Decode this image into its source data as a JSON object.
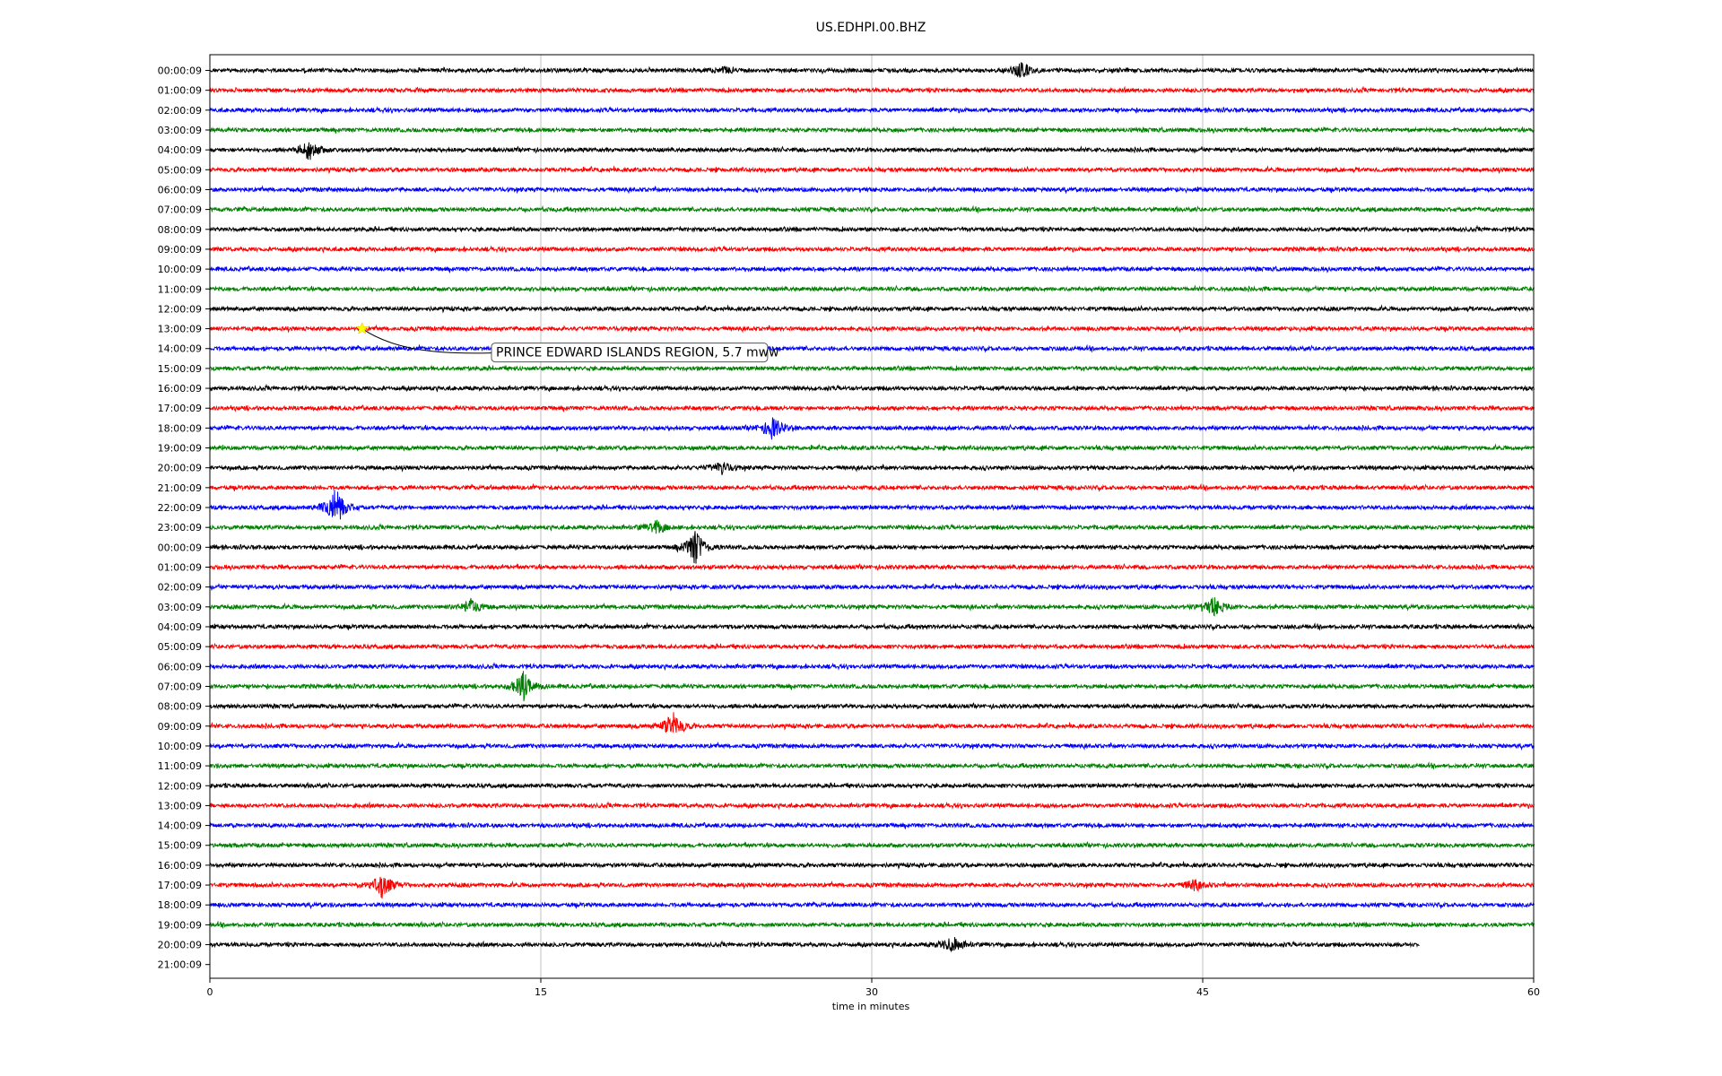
{
  "chart_data": {
    "type": "line",
    "title": "US.EDHPI.00.BHZ",
    "xlabel": "time in minutes",
    "ylabel": "",
    "xlim": [
      0,
      60
    ],
    "x_ticks": [
      0,
      15,
      30,
      45,
      60
    ],
    "grid": "vertical",
    "colors": [
      "#000000",
      "#ff0000",
      "#0000ff",
      "#008000"
    ],
    "row_labels": [
      "00:00:09",
      "01:00:09",
      "02:00:09",
      "03:00:09",
      "04:00:09",
      "05:00:09",
      "06:00:09",
      "07:00:09",
      "08:00:09",
      "09:00:09",
      "10:00:09",
      "11:00:09",
      "12:00:09",
      "13:00:09",
      "14:00:09",
      "15:00:09",
      "16:00:09",
      "17:00:09",
      "18:00:09",
      "19:00:09",
      "20:00:09",
      "21:00:09",
      "22:00:09",
      "23:00:09",
      "00:00:09",
      "01:00:09",
      "02:00:09",
      "03:00:09",
      "04:00:09",
      "05:00:09",
      "06:00:09",
      "07:00:09",
      "08:00:09",
      "09:00:09",
      "10:00:09",
      "11:00:09",
      "12:00:09",
      "13:00:09",
      "14:00:09",
      "15:00:09",
      "16:00:09",
      "17:00:09",
      "18:00:09",
      "19:00:09",
      "20:00:09",
      "21:00:09"
    ],
    "trace_rows": 45,
    "last_trace_end_minute": 54.8,
    "bursts": [
      {
        "row": 0,
        "minute": 36.8,
        "amp": 1.0
      },
      {
        "row": 0,
        "minute": 23.3,
        "amp": 0.4
      },
      {
        "row": 4,
        "minute": 4.5,
        "amp": 1.3
      },
      {
        "row": 18,
        "minute": 25.5,
        "amp": 1.5
      },
      {
        "row": 20,
        "minute": 23.2,
        "amp": 0.8
      },
      {
        "row": 22,
        "minute": 5.7,
        "amp": 2.4
      },
      {
        "row": 23,
        "minute": 20.2,
        "amp": 0.8
      },
      {
        "row": 24,
        "minute": 22.0,
        "amp": 2.2
      },
      {
        "row": 27,
        "minute": 45.5,
        "amp": 1.2
      },
      {
        "row": 27,
        "minute": 11.8,
        "amp": 1.0
      },
      {
        "row": 31,
        "minute": 14.2,
        "amp": 1.8
      },
      {
        "row": 33,
        "minute": 21.0,
        "amp": 1.8
      },
      {
        "row": 41,
        "minute": 7.8,
        "amp": 1.6
      },
      {
        "row": 41,
        "minute": 44.6,
        "amp": 0.7
      },
      {
        "row": 44,
        "minute": 33.6,
        "amp": 1.2
      }
    ],
    "annotation": {
      "text": "PRINCE EDWARD ISLANDS REGION, 5.7 mww",
      "row": 13,
      "minute": 6.9,
      "marker": "star",
      "marker_color": "#ffff00"
    }
  }
}
